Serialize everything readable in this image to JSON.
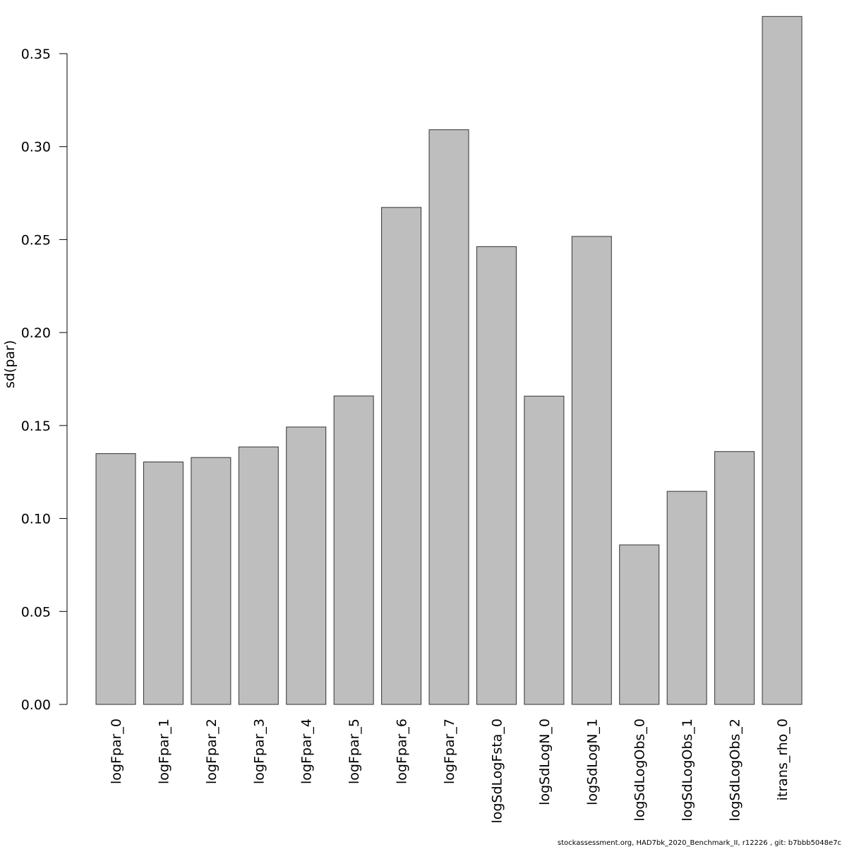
{
  "chart_data": {
    "type": "bar",
    "title": "",
    "xlabel": "",
    "ylabel": "sd(par)",
    "ylim": [
      0,
      0.35
    ],
    "yticks": [
      "0.00",
      "0.05",
      "0.10",
      "0.15",
      "0.20",
      "0.25",
      "0.30",
      "0.35"
    ],
    "ytick_values": [
      0,
      0.05,
      0.1,
      0.15,
      0.2,
      0.25,
      0.3,
      0.35
    ],
    "categories": [
      "logFpar_0",
      "logFpar_1",
      "logFpar_2",
      "logFpar_3",
      "logFpar_4",
      "logFpar_5",
      "logFpar_6",
      "logFpar_7",
      "logSdLogFsta_0",
      "logSdLogN_0",
      "logSdLogN_1",
      "logSdLogObs_0",
      "logSdLogObs_1",
      "logSdLogObs_2",
      "itrans_rho_0"
    ],
    "values": [
      0.1349,
      0.1304,
      0.1328,
      0.1385,
      0.1492,
      0.1659,
      0.2673,
      0.3091,
      0.2462,
      0.1658,
      0.2517,
      0.0858,
      0.1146,
      0.136,
      0.37
    ],
    "grid": false,
    "legend": "none",
    "bar_color": "#bebebe",
    "bar_edge_color": "#333333"
  },
  "footer": "stockassessment.org, HAD7bk_2020_Benchmark_II, r12226 , git: b7bbb5048e7c"
}
